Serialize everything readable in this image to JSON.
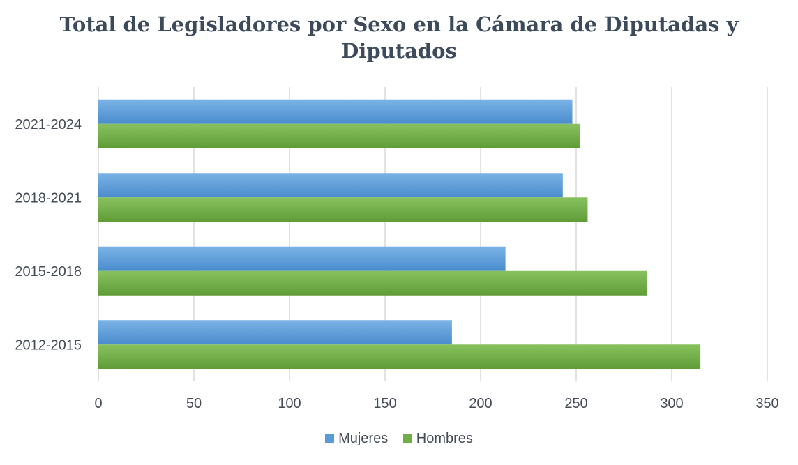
{
  "chart_data": {
    "type": "bar",
    "orientation": "horizontal",
    "title_lines": [
      "Total de Legisladores por Sexo en la Cámara de Diputadas y",
      "Diputados"
    ],
    "categories": [
      "2012-2015",
      "2015-2018",
      "2018-2021",
      "2021-2024"
    ],
    "series": [
      {
        "name": "Mujeres",
        "color": "#5b9bd5",
        "values": [
          185,
          213,
          243,
          248
        ]
      },
      {
        "name": "Hombres",
        "color": "#70ad47",
        "values": [
          315,
          287,
          256,
          252
        ]
      }
    ],
    "xlim": [
      0,
      350
    ],
    "xticks": [
      0,
      50,
      100,
      150,
      200,
      250,
      300,
      350
    ],
    "xlabel": "",
    "ylabel": "",
    "grid": true,
    "legend_position": "bottom"
  }
}
